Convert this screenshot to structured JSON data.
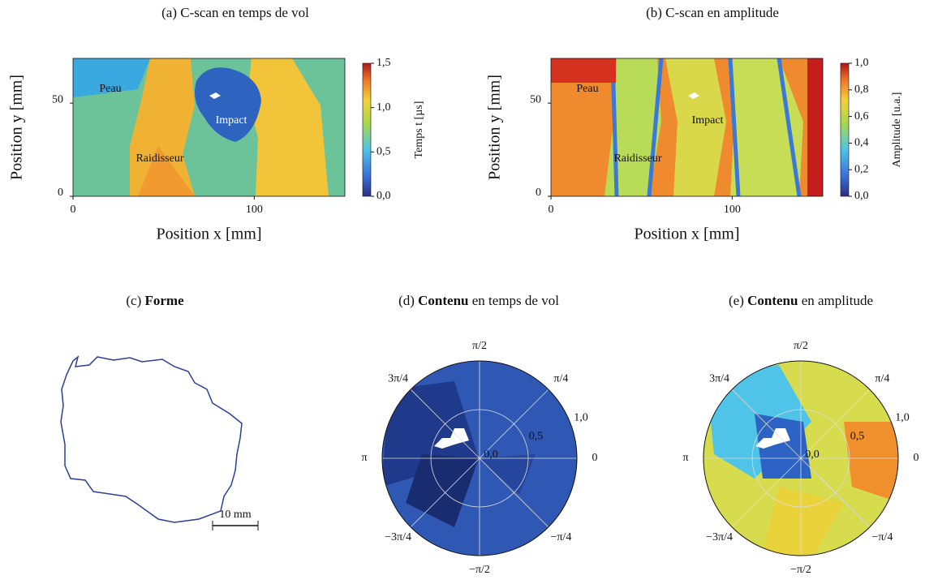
{
  "chart_data": [
    {
      "type": "heatmap",
      "title": "(a) C-scan en temps de vol",
      "xlabel": "Position x [mm]",
      "ylabel": "Position y [mm]",
      "xlim": [
        0,
        150
      ],
      "ylim": [
        0,
        74
      ],
      "xticks": [
        0,
        100
      ],
      "yticks": [
        0,
        50
      ],
      "colorbar": {
        "label": "Temps t [µs]",
        "lim": [
          0,
          1.5
        ],
        "ticks": [
          {
            "value": 0,
            "label": "0,0"
          },
          {
            "value": 0.5,
            "label": "0,5"
          },
          {
            "value": 1,
            "label": "1,0"
          },
          {
            "value": 1.5,
            "label": "1,5"
          }
        ]
      },
      "annotations": [
        "Peau",
        "Impact",
        "Raidisseur"
      ]
    },
    {
      "type": "heatmap",
      "title": "(b) C-scan en amplitude",
      "xlabel": "Position x [mm]",
      "ylabel": "Position y [mm]",
      "xlim": [
        0,
        150
      ],
      "ylim": [
        0,
        74
      ],
      "xticks": [
        0,
        100
      ],
      "yticks": [
        0,
        50
      ],
      "colorbar": {
        "label": "Amplitude [u.a.]",
        "lim": [
          0,
          1
        ],
        "ticks": [
          {
            "value": 0,
            "label": "0,0"
          },
          {
            "value": 0.2,
            "label": "0,2"
          },
          {
            "value": 0.4,
            "label": "0,4"
          },
          {
            "value": 0.6,
            "label": "0,6"
          },
          {
            "value": 0.8,
            "label": "0,8"
          },
          {
            "value": 1,
            "label": "1,0"
          }
        ]
      },
      "annotations": [
        "Peau",
        "Impact",
        "Raidisseur"
      ]
    },
    {
      "type": "shape",
      "title_label": "(c)",
      "title_bold": "Forme",
      "scale_bar": "10 mm"
    },
    {
      "type": "polar",
      "title_label": "(d)",
      "title_bold": "Contenu",
      "title_rest": "en temps de vol",
      "rlim": [
        0,
        1
      ],
      "rticks": [
        {
          "value": 0,
          "label": "0,0"
        },
        {
          "value": 0.5,
          "label": "0,5"
        },
        {
          "value": 1,
          "label": "1,0"
        }
      ],
      "angle_ticks": [
        {
          "value": 0,
          "label": "0"
        },
        {
          "value": 0.7854,
          "label": "π/4"
        },
        {
          "value": 1.5708,
          "label": "π/2"
        },
        {
          "value": 2.3562,
          "label": "3π/4"
        },
        {
          "value": 3.1416,
          "label": "π"
        },
        {
          "value": -2.3562,
          "label": "−3π/4"
        },
        {
          "value": -1.5708,
          "label": "−π/2"
        },
        {
          "value": -0.7854,
          "label": "−π/4"
        }
      ]
    },
    {
      "type": "polar",
      "title_label": "(e)",
      "title_bold": "Contenu",
      "title_rest": "en amplitude",
      "rlim": [
        0,
        1
      ],
      "rticks": [
        {
          "value": 0,
          "label": "0,0"
        },
        {
          "value": 0.5,
          "label": "0,5"
        },
        {
          "value": 1,
          "label": "1,0"
        }
      ],
      "angle_ticks": [
        {
          "value": 0,
          "label": "0"
        },
        {
          "value": 0.7854,
          "label": "π/4"
        },
        {
          "value": 1.5708,
          "label": "π/2"
        },
        {
          "value": 2.3562,
          "label": "3π/4"
        },
        {
          "value": 3.1416,
          "label": "π"
        },
        {
          "value": -2.3562,
          "label": "−3π/4"
        },
        {
          "value": -1.5708,
          "label": "−π/2"
        },
        {
          "value": -0.7854,
          "label": "−π/4"
        }
      ]
    }
  ]
}
